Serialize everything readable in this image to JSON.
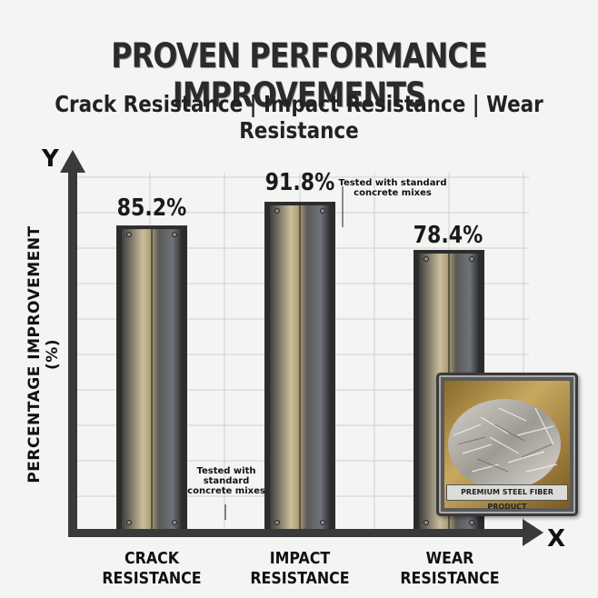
{
  "chart_data": {
    "type": "bar",
    "title": "PROVEN PERFORMANCE IMPROVEMENTS",
    "subtitle": "Crack Resistance | Impact Resistance | Wear Resistance",
    "xlabel": "X",
    "yaxis_letter": "Y",
    "ylabel": "PERCENTAGE IMPROVEMENT (%)",
    "categories": [
      [
        "CRACK",
        "RESISTANCE"
      ],
      [
        "IMPACT",
        "RESISTANCE"
      ],
      [
        "WEAR",
        "RESISTANCE"
      ]
    ],
    "values": [
      85.2,
      91.8,
      78.4
    ],
    "value_labels": [
      "85.2%",
      "91.8%",
      "78.4%"
    ],
    "ylim": [
      0,
      100
    ],
    "grid": true,
    "annotations": [
      "Tested with standard concrete mixes",
      "Tested with standard concrete mixes"
    ]
  },
  "product_label": "PREMIUM STEEL FIBER PRODUCT"
}
